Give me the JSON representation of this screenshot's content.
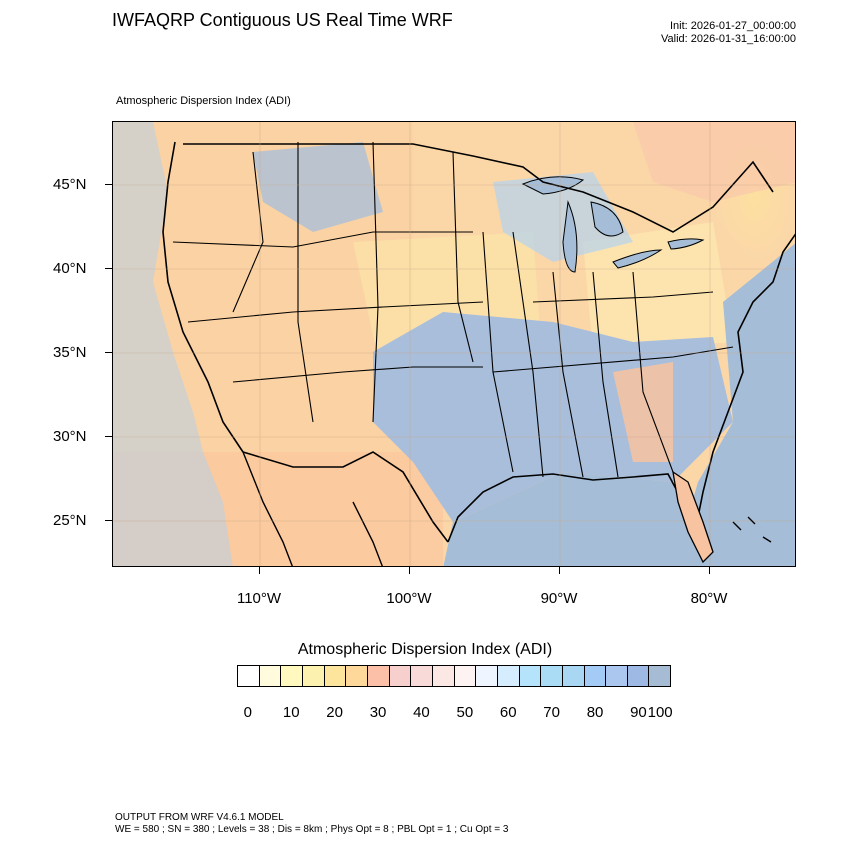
{
  "header": {
    "title": "IWFAQRP Contiguous US Real Time WRF",
    "init": "Init: 2026-01-27_00:00:00",
    "valid": "Valid: 2026-01-31_16:00:00"
  },
  "map": {
    "subtitle": "Atmospheric Dispersion Index   (ADI)",
    "lat_labels": [
      "45°N",
      "40°N",
      "35°N",
      "30°N",
      "25°N"
    ],
    "lon_labels": [
      "110°W",
      "100°W",
      "90°W",
      "80°W"
    ]
  },
  "colorbar": {
    "title": "Atmospheric Dispersion Index  (ADI)",
    "labels": [
      "0",
      "10",
      "20",
      "30",
      "40",
      "50",
      "60",
      "70",
      "80",
      "90",
      "100"
    ],
    "colors": [
      "#ffffff",
      "#fffbdc",
      "#fff9c0",
      "#fdf1b0",
      "#fde59e",
      "#fdd89a",
      "#fcc0a8",
      "#f7cfcc",
      "#f8dbd8",
      "#fbe8e4",
      "#fdf3f2",
      "#eef5ff",
      "#d6ecff",
      "#b4e3fb",
      "#aadcf6",
      "#a8d6f3",
      "#a4cbf5",
      "#abc7ef",
      "#9eb9e4",
      "#a6bbd4"
    ]
  },
  "footer": {
    "line1": "OUTPUT FROM WRF V4.6.1 MODEL",
    "line2": "WE = 580 ; SN = 380 ; Levels = 38 ; Dis = 8km ; Phys Opt = 8 ; PBL Opt = 1 ; Cu Opt = 3"
  }
}
